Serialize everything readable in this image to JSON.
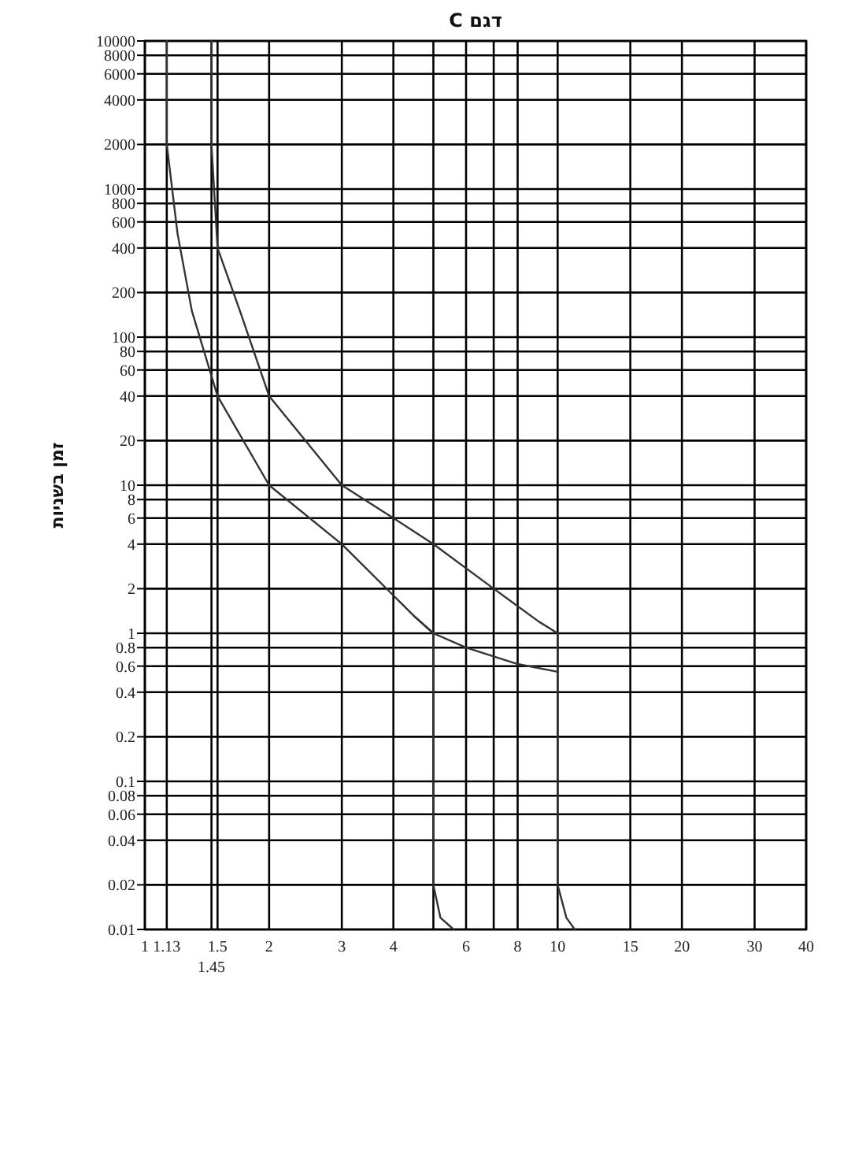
{
  "chart_data": {
    "type": "line",
    "title": "דגם C",
    "ylabel": "זמן בשניות",
    "xlim": [
      1,
      40
    ],
    "ylim": [
      0.01,
      10000
    ],
    "log": "xy",
    "grid": true,
    "marker": "none",
    "line_style": "solid",
    "annotations": [
      "1.45"
    ],
    "xticks": [
      1,
      1.13,
      {
        "value": 1.45,
        "label": null
      },
      1.5,
      2,
      3,
      4,
      {
        "value": 5,
        "label": null
      },
      6,
      {
        "value": 7,
        "label": null
      },
      8,
      10,
      15,
      20,
      30,
      40
    ],
    "yticks": [
      0.01,
      0.02,
      0.04,
      0.06,
      0.08,
      0.1,
      0.2,
      0.4,
      0.6,
      0.8,
      1,
      2,
      4,
      6,
      8,
      10,
      20,
      40,
      60,
      80,
      100,
      200,
      400,
      600,
      800,
      1000,
      2000,
      4000,
      6000,
      8000,
      10000
    ],
    "series": [
      {
        "color": "#333333",
        "x": [
          1.13,
          1.13,
          1.2,
          1.3,
          1.5,
          2,
          3,
          4,
          4.5,
          5,
          5,
          5.2,
          5.6
        ],
        "values": [
          10000,
          2000,
          500,
          150,
          40,
          10,
          4,
          1.8,
          1.3,
          1,
          0.02,
          0.012,
          0.01
        ]
      },
      {
        "color": "#333333",
        "x": [
          1.45,
          1.45,
          1.5,
          1.7,
          2,
          3,
          4,
          5,
          7,
          9,
          10,
          10,
          10.5,
          11
        ],
        "values": [
          10000,
          2000,
          400,
          150,
          40,
          10,
          6,
          4,
          2,
          1.2,
          1,
          0.02,
          0.012,
          0.01
        ]
      },
      {
        "color": "#333333",
        "x": [
          4.5,
          5,
          6,
          8,
          10
        ],
        "values": [
          1.3,
          1,
          0.8,
          0.62,
          0.55
        ]
      }
    ]
  }
}
